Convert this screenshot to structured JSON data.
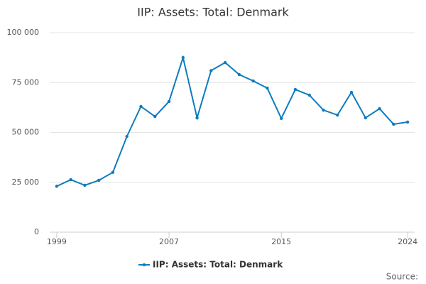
{
  "chart_data": {
    "type": "line",
    "title": "IIP: Assets: Total: Denmark",
    "x": [
      1999,
      2000,
      2001,
      2002,
      2003,
      2004,
      2005,
      2006,
      2007,
      2008,
      2009,
      2010,
      2011,
      2012,
      2013,
      2014,
      2015,
      2016,
      2017,
      2018,
      2019,
      2020,
      2021,
      2022,
      2023,
      2024
    ],
    "series": [
      {
        "name": "IIP: Assets: Total: Denmark",
        "color": "#0e7bbf",
        "values": [
          23000,
          26300,
          23500,
          26000,
          30000,
          48000,
          63000,
          58000,
          65500,
          87500,
          57300,
          81000,
          85000,
          79000,
          75800,
          72200,
          57000,
          71500,
          68700,
          61200,
          58700,
          70100,
          57300,
          61900,
          54100,
          55200
        ]
      }
    ],
    "xlim": [
      1998.5,
      2024.5
    ],
    "xticks": [
      1999,
      2007,
      2015,
      2024
    ],
    "ylim": [
      0,
      100000
    ],
    "yticks": [
      0,
      {
        "value": 25000,
        "label": "25 000"
      },
      {
        "value": 50000,
        "label": "50 000"
      },
      {
        "value": 75000,
        "label": "75 000"
      },
      {
        "value": 100000,
        "label": "100 000"
      }
    ],
    "grid": true,
    "legend": "bottom",
    "source_label": "Source:"
  }
}
